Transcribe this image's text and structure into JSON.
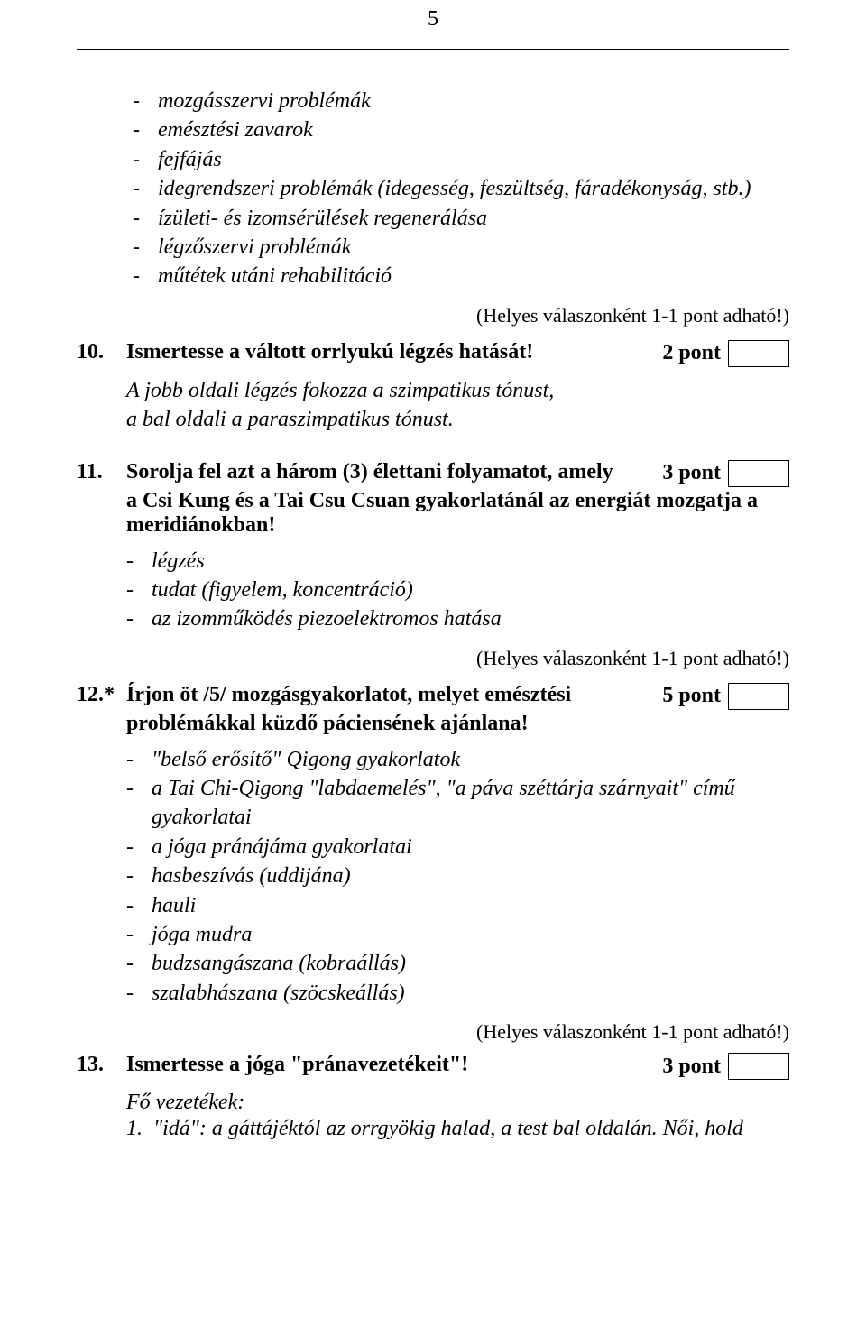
{
  "pageNumber": "5",
  "intro_list": [
    "mozgásszervi problémák",
    "emésztési zavarok",
    "fejfájás",
    "idegrendszeri problémák (idegesség, feszültség, fáradékonyság, stb.)",
    "ízületi- és izomsérülések regenerálása",
    "légzőszervi problémák",
    "műtétek utáni rehabilitáció"
  ],
  "scoring_note": "(Helyes válaszonként 1-1 pont adható!)",
  "q10": {
    "num": "10.",
    "text": "Ismertesse a váltott orrlyukú légzés hatását!",
    "points": "2 pont",
    "answer": "A jobb oldali légzés fokozza a szimpatikus tónust,\na bal oldali a paraszimpatikus tónust."
  },
  "q11": {
    "num": "11.",
    "text_line1": "Sorolja fel azt a három (3) élettani folyamatot, amely",
    "text_cont": "a Csi Kung és a Tai Csu Csuan gyakorlatánál az energiát mozgatja a meridiánokban!",
    "points": "3 pont",
    "answers": [
      "légzés",
      "tudat (figyelem, koncentráció)",
      "az izomműködés piezoelektromos hatása"
    ]
  },
  "q12": {
    "num": "12.*",
    "text_line1": "Írjon öt /5/ mozgásgyakorlatot, melyet emésztési",
    "text_cont": "problémákkal küzdő páciensének ajánlana!",
    "points": "5 pont",
    "answers": [
      "\"belső erősítő\" Qigong gyakorlatok",
      "a Tai Chi-Qigong \"labdaemelés\", \"a páva széttárja szárnyait\" című gyakorlatai",
      "a jóga pránájáma gyakorlatai",
      "hasbeszívás (uddijána)",
      "hauli",
      "jóga mudra",
      "budzsangászana (kobraállás)",
      "szalabhászana (szöcskeállás)"
    ]
  },
  "q13": {
    "num": "13.",
    "text": "Ismertesse a jóga \"pránavezetékeit\"!",
    "points": "3 pont",
    "subheading": "Fő vezetékek:",
    "item1_num": "1.",
    "item1_text": "\"idá\": a gáttájéktól az orrgyökig halad, a test bal oldalán. Női, hold"
  }
}
